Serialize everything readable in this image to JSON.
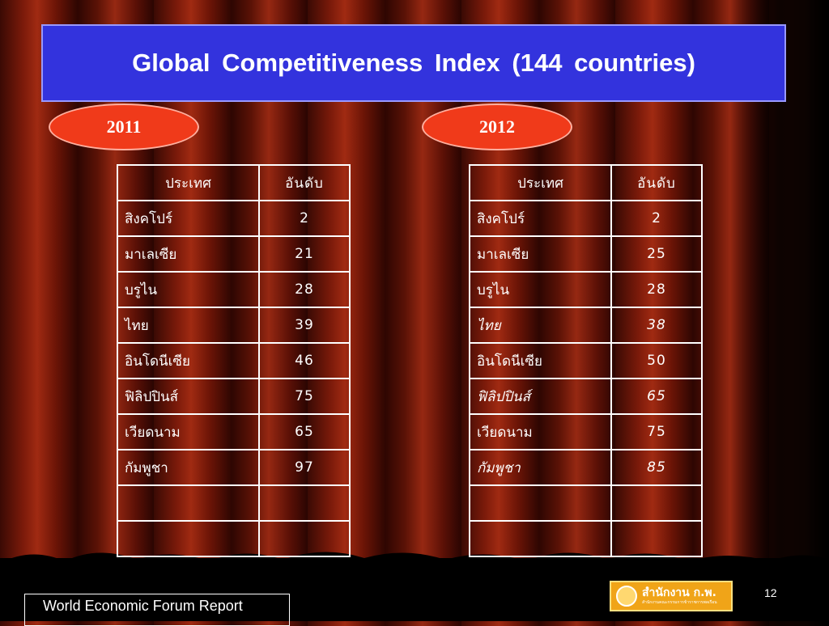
{
  "title": "Global Competitiveness Index (144 countries)",
  "tables": [
    {
      "year": "2011",
      "header": {
        "country": "ประเทศ",
        "rank": "อันดับ"
      },
      "rows": [
        {
          "country": "สิงคโปร์",
          "rank": "2",
          "italic": false
        },
        {
          "country": "มาเลเซีย",
          "rank": "21",
          "italic": false
        },
        {
          "country": "บรูไน",
          "rank": "28",
          "italic": false
        },
        {
          "country": "ไทย",
          "rank": "39",
          "italic": false
        },
        {
          "country": "อินโดนีเซีย",
          "rank": "46",
          "italic": false
        },
        {
          "country": "ฟิลิปปินส์",
          "rank": "75",
          "italic": false
        },
        {
          "country": "เวียดนาม",
          "rank": "65",
          "italic": false
        },
        {
          "country": "กัมพูชา",
          "rank": "97",
          "italic": false
        },
        {
          "country": "",
          "rank": "",
          "italic": false
        },
        {
          "country": "",
          "rank": "",
          "italic": false
        }
      ]
    },
    {
      "year": "2012",
      "header": {
        "country": "ประเทศ",
        "rank": "อันดับ"
      },
      "rows": [
        {
          "country": "สิงคโปร์",
          "rank": "2",
          "italic": false
        },
        {
          "country": "มาเลเซีย",
          "rank": "25",
          "italic": false
        },
        {
          "country": "บรูไน",
          "rank": "28",
          "italic": false
        },
        {
          "country": "ไทย",
          "rank": "38",
          "italic": true
        },
        {
          "country": "อินโดนีเซีย",
          "rank": "50",
          "italic": false
        },
        {
          "country": "ฟิลิปปินส์",
          "rank": "65",
          "italic": true
        },
        {
          "country": "เวียดนาม",
          "rank": "75",
          "italic": false
        },
        {
          "country": "กัมพูชา",
          "rank": "85",
          "italic": true
        },
        {
          "country": "",
          "rank": "",
          "italic": false
        },
        {
          "country": "",
          "rank": "",
          "italic": false
        }
      ]
    }
  ],
  "source": "World Economic Forum Report",
  "page_number": "12",
  "logo": {
    "text": "สำนักงาน ก.พ.",
    "sub": "สำนักงานคณะกรรมการข้าราชการพลเรือน"
  },
  "colors": {
    "title_bg": "#3333dd",
    "oval": "#f03a1a",
    "logo_bg": "#f0a418"
  }
}
